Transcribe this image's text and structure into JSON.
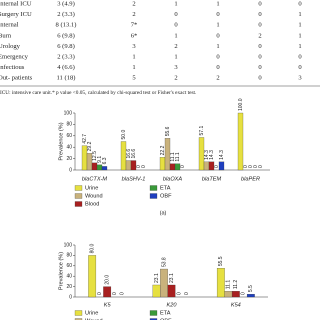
{
  "table": {
    "rows": [
      [
        "Internal ICU",
        "3 (4.9)",
        "2",
        "1",
        "1",
        "0",
        "0"
      ],
      [
        "Surgery ICU",
        "2 (3.3)",
        "2",
        "0",
        "0",
        "0",
        "1"
      ],
      [
        "Internal",
        "8 (13.1)",
        "7*",
        "0",
        "1",
        "0",
        "1"
      ],
      [
        "Burn",
        "6 (9.8)",
        "6*",
        "1",
        "0",
        "2",
        "1"
      ],
      [
        "Urology",
        "6 (9.8)",
        "3",
        "2",
        "1",
        "0",
        "1"
      ],
      [
        "Emergency",
        "2 (3.3)",
        "1",
        "1",
        "0",
        "0",
        "0"
      ],
      [
        "Infectious",
        "4 (6.6)",
        "1",
        "3",
        "0",
        "0",
        "0"
      ],
      [
        "Out- patients",
        "11 (18)",
        "5",
        "2",
        "2",
        "0",
        "3"
      ]
    ],
    "footnote": "ICU: intensive care unit.* p value <0.05, calculated by chi-squared test or Fisher's exact test."
  },
  "chart_data": [
    {
      "type": "bar",
      "caption": "(a)",
      "y_label": "Prevalence (%)",
      "categories": [
        "blaCTX-M",
        "blaSHV-1",
        "blaOXA",
        "blaTEM",
        "blaPER"
      ],
      "series": [
        {
          "name": "Urine",
          "color": "#e6e040",
          "values": [
            42.7,
            50.0,
            22.2,
            57.1,
            100.0
          ],
          "value_labels": [
            "42.7",
            "50.0",
            "22.2",
            "57.1",
            "100.0"
          ]
        },
        {
          "name": "Wound",
          "color": "#c9b27c",
          "values": [
            29.2,
            16.6,
            55.6,
            14.3,
            0
          ],
          "value_labels": [
            "29.2",
            "16.6",
            "55.6",
            "14.3",
            "0"
          ]
        },
        {
          "name": "Blood",
          "color": "#a82020",
          "values": [
            12.5,
            16.6,
            11.1,
            14.3,
            0
          ],
          "value_labels": [
            "12.5",
            "16.6",
            "11.1",
            "14.3",
            "0"
          ]
        },
        {
          "name": "ETA",
          "color": "#3a9a3a",
          "values": [
            9.1,
            0,
            11.1,
            0,
            0
          ],
          "value_labels": [
            "9.1",
            "0",
            "11.1",
            "0",
            "0"
          ]
        },
        {
          "name": "OBF",
          "color": "#1f3fbf",
          "values": [
            6.3,
            0,
            0,
            14.3,
            0
          ],
          "value_labels": [
            "6.3",
            "0",
            "0",
            "14.3",
            "0"
          ]
        }
      ],
      "ylim": [
        0,
        100
      ],
      "yticks": [
        0,
        20,
        40,
        60,
        80,
        100
      ]
    },
    {
      "type": "bar",
      "y_label": "Prevalence (%)",
      "categories": [
        "K5",
        "K20",
        "K54"
      ],
      "series": [
        {
          "name": "Urine",
          "color": "#e6e040",
          "values": [
            80.0,
            23.1,
            55.5
          ],
          "value_labels": [
            "80.0",
            "23.1",
            "55.5"
          ]
        },
        {
          "name": "Wound",
          "color": "#c9b27c",
          "values": [
            0,
            53.8,
            11.1
          ],
          "value_labels": [
            "0",
            "53.8",
            "11.1"
          ]
        },
        {
          "name": "Blood",
          "color": "#a82020",
          "values": [
            20.0,
            23.1,
            11.2
          ],
          "value_labels": [
            "20.0",
            "23.1",
            "11.2"
          ]
        },
        {
          "name": "ETA",
          "color": "#3a9a3a",
          "values": [
            0,
            0,
            0
          ],
          "value_labels": [
            "0",
            "0",
            "0"
          ]
        },
        {
          "name": "OBF",
          "color": "#1f3fbf",
          "values": [
            0,
            0,
            5.5
          ],
          "value_labels": [
            "0",
            "0",
            "5.5"
          ]
        }
      ],
      "ylim": [
        0,
        100
      ],
      "yticks": [
        0,
        20,
        40,
        60,
        80,
        100
      ]
    }
  ]
}
